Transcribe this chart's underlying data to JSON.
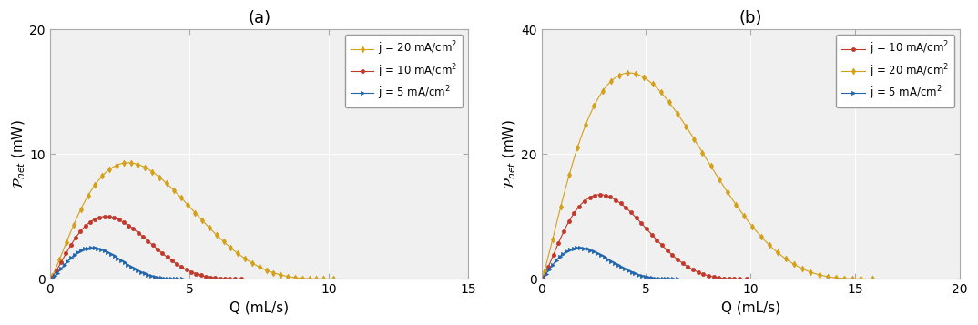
{
  "panel_a": {
    "title": "(a)",
    "xlabel": "Q (mL/s)",
    "xlim": [
      0,
      15
    ],
    "ylim": [
      0,
      20
    ],
    "xticks": [
      0,
      5,
      10,
      15
    ],
    "yticks": [
      0,
      10,
      20
    ],
    "curves": [
      {
        "color": "#D4A017",
        "marker": "d",
        "markersize": 3.5,
        "label": "j = 20 mA/cm$^2$",
        "Q_max": 10.15,
        "P_max": 9.3,
        "Q_peak": 2.8,
        "b_exp": 3.5
      },
      {
        "color": "#C0392B",
        "marker": "o",
        "markersize": 3.0,
        "label": "j = 10 mA/cm$^2$",
        "Q_max": 6.85,
        "P_max": 5.0,
        "Q_peak": 2.0,
        "b_exp": 3.5
      },
      {
        "color": "#2166AC",
        "marker": ">",
        "markersize": 3.0,
        "label": "j = 5 mA/cm$^2$",
        "Q_max": 4.75,
        "P_max": 2.5,
        "Q_peak": 1.5,
        "b_exp": 3.5
      }
    ]
  },
  "panel_b": {
    "title": "(b)",
    "xlabel": "Q (mL/s)",
    "xlim": [
      0,
      20
    ],
    "ylim": [
      0,
      40
    ],
    "xticks": [
      0,
      5,
      10,
      15,
      20
    ],
    "yticks": [
      0,
      20,
      40
    ],
    "curves": [
      {
        "color": "#C0392B",
        "marker": "o",
        "markersize": 3.0,
        "label": "j = 10 mA/cm$^2$",
        "Q_max": 9.8,
        "P_max": 13.5,
        "Q_peak": 2.8,
        "b_exp": 3.5
      },
      {
        "color": "#D4A017",
        "marker": "d",
        "markersize": 3.5,
        "label": "j = 20 mA/cm$^2$",
        "Q_max": 15.8,
        "P_max": 33.0,
        "Q_peak": 4.2,
        "b_exp": 3.5
      },
      {
        "color": "#2166AC",
        "marker": ">",
        "markersize": 3.0,
        "label": "j = 5 mA/cm$^2$",
        "Q_max": 6.5,
        "P_max": 5.0,
        "Q_peak": 1.8,
        "b_exp": 3.5
      }
    ]
  },
  "n_points": 120,
  "n_markers": 40,
  "bg_color": "#f0f0f0",
  "spine_color": "#aaaaaa",
  "tick_labelsize": 10,
  "label_fontsize": 11,
  "title_fontsize": 13,
  "legend_fontsize": 8.5
}
